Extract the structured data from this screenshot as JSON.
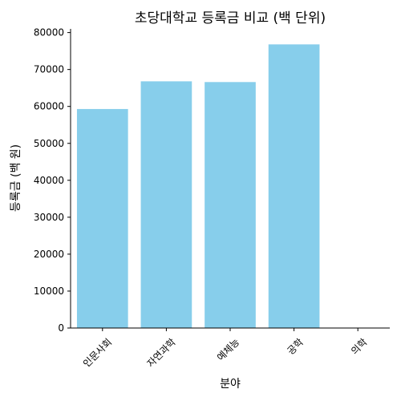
{
  "chart_data": {
    "type": "bar",
    "title": "초당대학교 등록금 비교 (백 단위)",
    "xlabel": "분야",
    "ylabel": "등록금 (백 원)",
    "categories": [
      "인문사회",
      "자연과학",
      "예체능",
      "공학",
      "의학"
    ],
    "values": [
      59300,
      66800,
      66600,
      76800,
      0
    ],
    "ylim": [
      0,
      81000
    ],
    "yticks": [
      0,
      10000,
      20000,
      30000,
      40000,
      50000,
      60000,
      70000,
      80000
    ],
    "bar_color": "#87ceeb",
    "grid": false,
    "legend": "none"
  }
}
